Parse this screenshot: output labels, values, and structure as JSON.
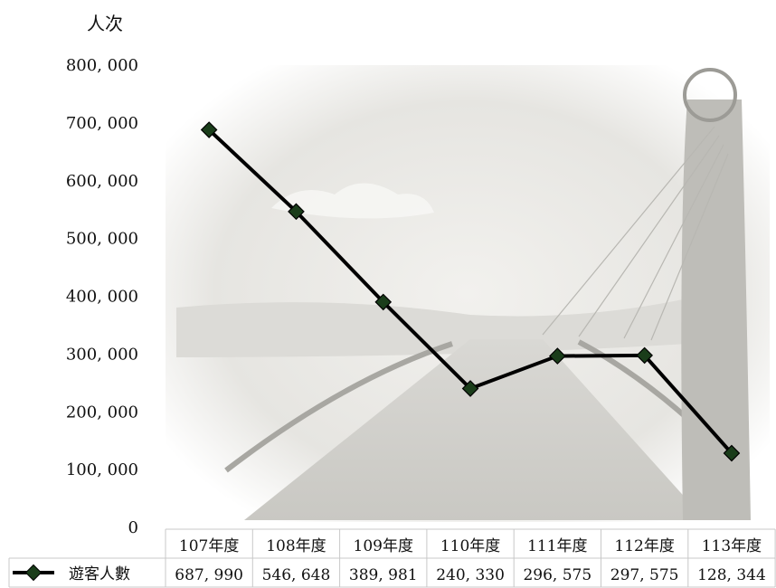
{
  "chart_data": {
    "type": "line",
    "ylabel": "人次",
    "ylim": [
      0,
      800000
    ],
    "yticks": [
      "0",
      "100, 000",
      "200, 000",
      "300, 000",
      "400, 000",
      "500, 000",
      "600, 000",
      "700, 000",
      "800, 000"
    ],
    "categories": [
      "107年度",
      "108年度",
      "109年度",
      "110年度",
      "111年度",
      "112年度",
      "113年度"
    ],
    "series": [
      {
        "name": "遊客人數",
        "values": [
          687990,
          546648,
          389981,
          240330,
          296575,
          297575,
          128344
        ],
        "value_labels": [
          "687, 990",
          "546, 648",
          "389, 981",
          "240, 330",
          "296, 575",
          "297, 575",
          "128, 344"
        ]
      }
    ],
    "legend": "bottom-left (data table)",
    "grid": false,
    "colors": {
      "line": "#000000",
      "marker": "#1a3d1a"
    }
  }
}
